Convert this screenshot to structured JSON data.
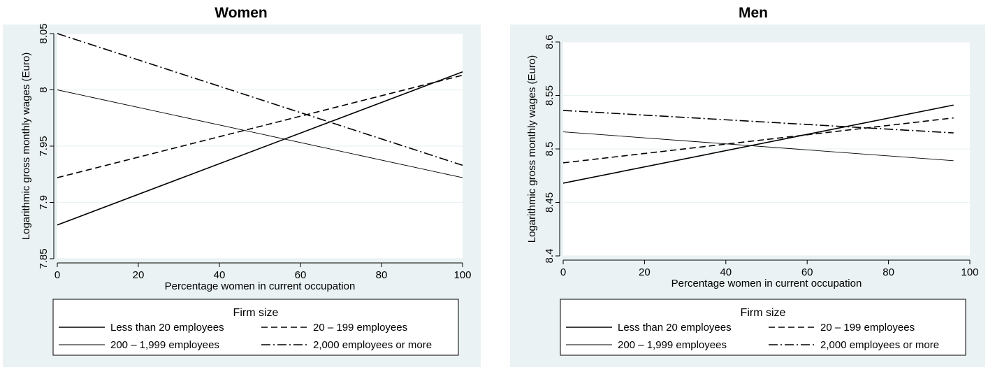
{
  "colors": {
    "background": "#eaf2f3",
    "plot_background": "#ffffff",
    "grid": "#eaf2f3",
    "axis": "#000000",
    "line": "#000000"
  },
  "chart_data": [
    {
      "type": "line",
      "title": "Women",
      "xlabel": "Percentage women in current occupation",
      "ylabel": "Logarithmic gross monthly wages (Euro)",
      "xlim": [
        0,
        100
      ],
      "ylim": [
        7.85,
        8.05
      ],
      "xticks": [
        0,
        20,
        40,
        60,
        80,
        100
      ],
      "xtick_labels": [
        "0",
        "20",
        "40",
        "60",
        "80",
        "100"
      ],
      "yticks": [
        7.85,
        7.9,
        7.95,
        8.0,
        8.05
      ],
      "ytick_labels": [
        "7.85",
        "7.9",
        "7.95",
        "8",
        "8.05"
      ],
      "grid": true,
      "legend": {
        "title": "Firm size",
        "placement": "bottom",
        "columns": 2
      },
      "series": [
        {
          "name": "Less than 20 employees",
          "style": "solid",
          "x": [
            0,
            100
          ],
          "y": [
            7.88,
            8.016
          ]
        },
        {
          "name": "20 – 199 employees",
          "style": "dashed",
          "x": [
            0,
            100
          ],
          "y": [
            7.922,
            8.013
          ]
        },
        {
          "name": "200 – 1,999 employees",
          "style": "thin",
          "x": [
            0,
            100
          ],
          "y": [
            8.0,
            7.922
          ]
        },
        {
          "name": "2,000 employees or more",
          "style": "dashdot",
          "x": [
            0,
            100
          ],
          "y": [
            8.05,
            7.933
          ]
        }
      ]
    },
    {
      "type": "line",
      "title": "Men",
      "xlabel": "Percentage women in current occupation",
      "ylabel": "Logarithmic gross monthly wages (Euro)",
      "xlim": [
        0,
        100
      ],
      "ylim": [
        8.4,
        8.6
      ],
      "xticks": [
        0,
        20,
        40,
        60,
        80,
        100
      ],
      "xtick_labels": [
        "0",
        "20",
        "40",
        "60",
        "80",
        "100"
      ],
      "yticks": [
        8.4,
        8.45,
        8.5,
        8.55,
        8.6
      ],
      "ytick_labels": [
        "8.4",
        "8.45",
        "8.5",
        "8.55",
        "8.6"
      ],
      "grid": true,
      "legend": {
        "title": "Firm size",
        "placement": "bottom",
        "columns": 2
      },
      "series": [
        {
          "name": "Less than 20 employees",
          "style": "solid",
          "x": [
            0,
            96
          ],
          "y": [
            8.468,
            8.541
          ]
        },
        {
          "name": "20 – 199 employees",
          "style": "dashed",
          "x": [
            0,
            96
          ],
          "y": [
            8.487,
            8.529
          ]
        },
        {
          "name": "200 – 1,999 employees",
          "style": "thin",
          "x": [
            0,
            96
          ],
          "y": [
            8.516,
            8.489
          ]
        },
        {
          "name": "2,000 employees or more",
          "style": "dashdot",
          "x": [
            0,
            96
          ],
          "y": [
            8.536,
            8.515
          ]
        }
      ]
    }
  ]
}
